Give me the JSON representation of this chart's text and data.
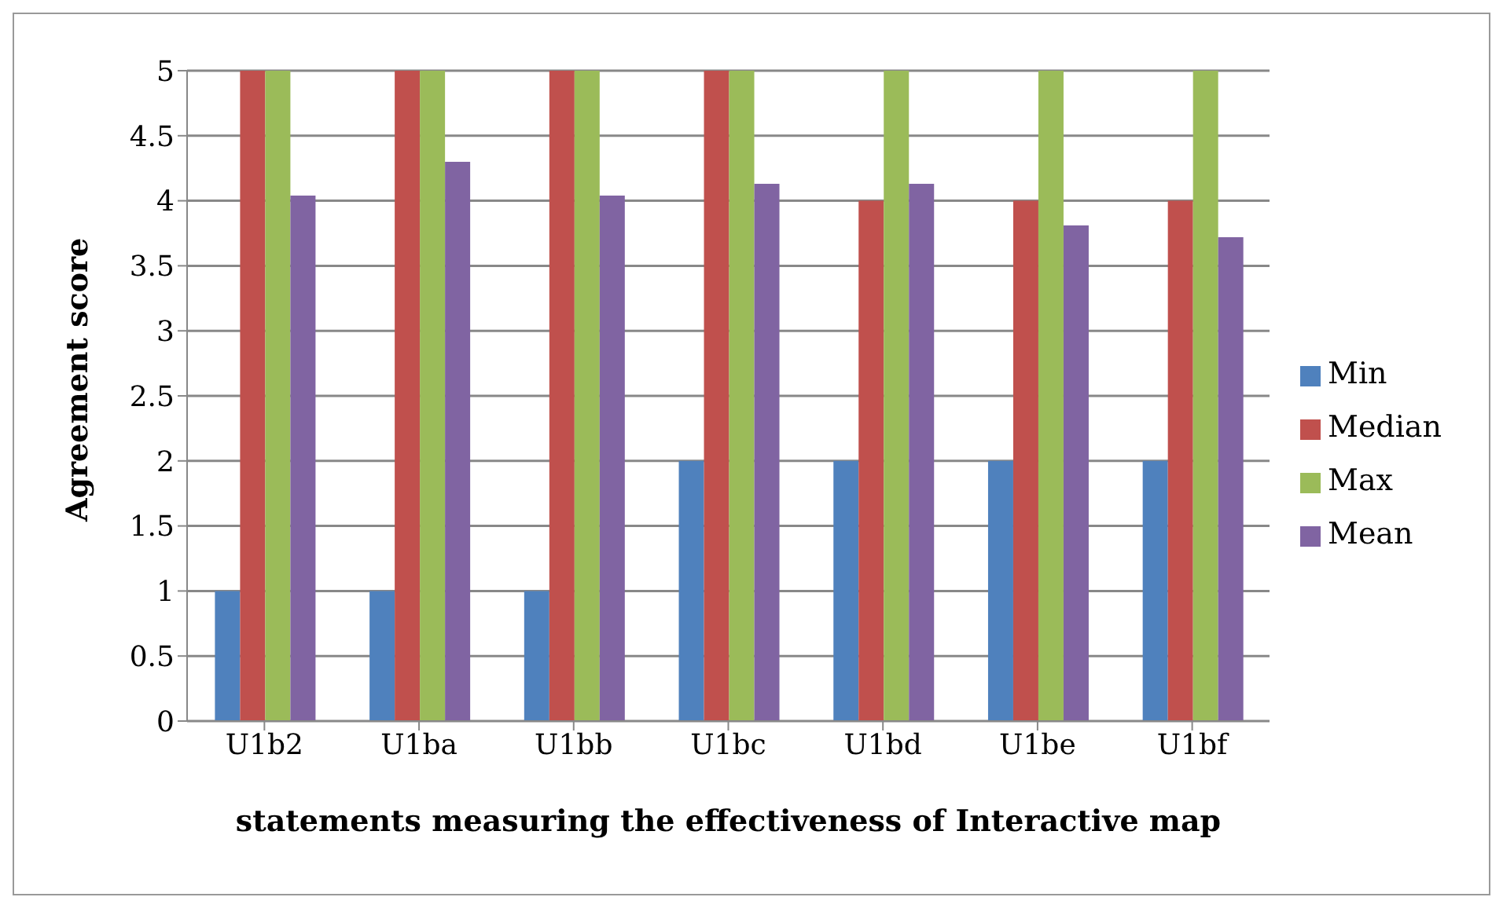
{
  "chart_data": {
    "type": "bar",
    "xlabel": "statements measuring the effectiveness of Interactive map",
    "ylabel": "Agreement score",
    "categories": [
      "U1b2",
      "U1ba",
      "U1bb",
      "U1bc",
      "U1bd",
      "U1be",
      "U1bf"
    ],
    "series": [
      {
        "name": "Min",
        "color": "#4f81bd",
        "values": [
          1,
          1,
          1,
          2,
          2,
          2,
          2
        ]
      },
      {
        "name": "Median",
        "color": "#c0504d",
        "values": [
          5,
          5,
          5,
          5,
          4,
          4,
          4
        ]
      },
      {
        "name": "Max",
        "color": "#9bbb59",
        "values": [
          5,
          5,
          5,
          5,
          5,
          5,
          5
        ]
      },
      {
        "name": "Mean",
        "color": "#8064a2",
        "values": [
          4.04,
          4.3,
          4.04,
          4.13,
          4.13,
          3.81,
          3.72
        ]
      }
    ],
    "ylim": [
      0,
      5
    ],
    "yticks": [
      0,
      0.5,
      1,
      1.5,
      2,
      2.5,
      3,
      3.5,
      4,
      4.5,
      5
    ],
    "grid": "y",
    "legend": "right"
  }
}
